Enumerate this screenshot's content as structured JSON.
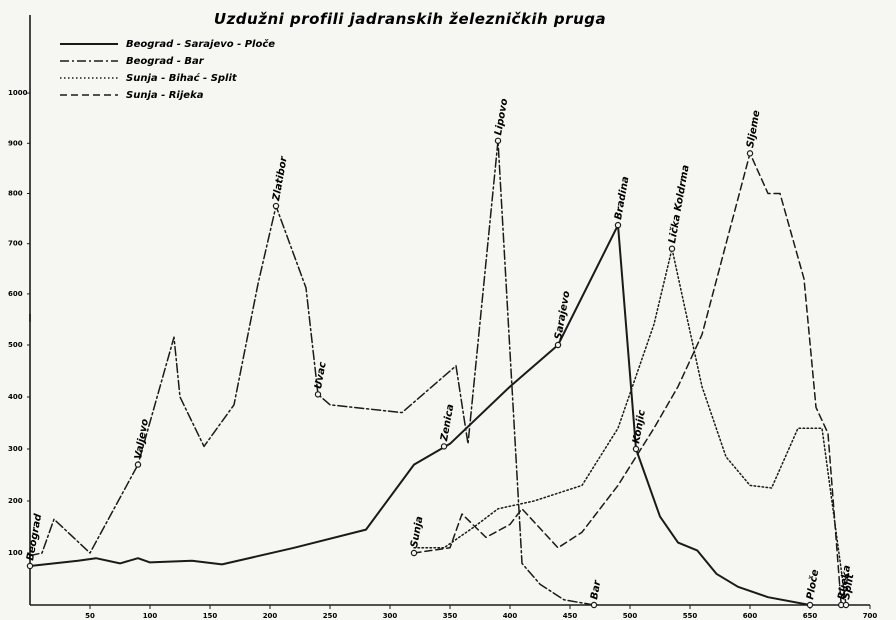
{
  "chart_data": {
    "type": "line",
    "title": "Uzdužni profili jadranskih železničkih pruga",
    "xlabel": "",
    "ylabel": "",
    "xlim": [
      0,
      700
    ],
    "ylim_lower": [
      0,
      550
    ],
    "ylim_upper": [
      550,
      1000
    ],
    "x_ticks": [
      "50",
      "100",
      "150",
      "200",
      "250",
      "300",
      "350",
      "400",
      "450",
      "500",
      "550",
      "600",
      "650",
      "700"
    ],
    "y_ticks_lower": [
      "100",
      "200",
      "300",
      "400",
      "500"
    ],
    "y_ticks_upper": [
      "600",
      "700",
      "800",
      "900",
      "1000"
    ],
    "legend_position": "top-left",
    "series": [
      {
        "name": "Beograd - Sarajevo - Ploče",
        "style": "solid",
        "points": [
          [
            0,
            75
          ],
          [
            40,
            85
          ],
          [
            55,
            90
          ],
          [
            75,
            80
          ],
          [
            90,
            90
          ],
          [
            100,
            82
          ],
          [
            135,
            85
          ],
          [
            160,
            78
          ],
          [
            220,
            110
          ],
          [
            280,
            145
          ],
          [
            320,
            270
          ],
          [
            350,
            310
          ],
          [
            400,
            420
          ],
          [
            440,
            500
          ],
          [
            490,
            737
          ],
          [
            505,
            300
          ],
          [
            525,
            170
          ],
          [
            540,
            120
          ],
          [
            556,
            105
          ],
          [
            572,
            60
          ],
          [
            590,
            35
          ],
          [
            615,
            15
          ],
          [
            650,
            0
          ]
        ]
      },
      {
        "name": "Beograd - Bar",
        "style": "dashdot",
        "points": [
          [
            0,
            95
          ],
          [
            10,
            100
          ],
          [
            20,
            165
          ],
          [
            50,
            100
          ],
          [
            90,
            270
          ],
          [
            120,
            515
          ],
          [
            125,
            400
          ],
          [
            145,
            305
          ],
          [
            170,
            385
          ],
          [
            190,
            620
          ],
          [
            205,
            775
          ],
          [
            230,
            612
          ],
          [
            240,
            405
          ],
          [
            250,
            385
          ],
          [
            310,
            370
          ],
          [
            355,
            460
          ],
          [
            365,
            310
          ],
          [
            390,
            905
          ],
          [
            410,
            80
          ],
          [
            425,
            40
          ],
          [
            445,
            10
          ],
          [
            470,
            0
          ]
        ]
      },
      {
        "name": "Sunja - Bihać - Split",
        "style": "dotted",
        "points": [
          [
            320,
            110
          ],
          [
            345,
            110
          ],
          [
            370,
            150
          ],
          [
            390,
            185
          ],
          [
            420,
            200
          ],
          [
            460,
            230
          ],
          [
            490,
            340
          ],
          [
            520,
            540
          ],
          [
            535,
            690
          ],
          [
            560,
            420
          ],
          [
            580,
            285
          ],
          [
            600,
            230
          ],
          [
            618,
            225
          ],
          [
            640,
            340
          ],
          [
            660,
            340
          ],
          [
            680,
            0
          ]
        ]
      },
      {
        "name": "Sunja - Rijeka",
        "style": "dashed",
        "points": [
          [
            320,
            100
          ],
          [
            350,
            110
          ],
          [
            360,
            175
          ],
          [
            380,
            130
          ],
          [
            400,
            155
          ],
          [
            410,
            185
          ],
          [
            440,
            110
          ],
          [
            460,
            140
          ],
          [
            490,
            230
          ],
          [
            520,
            340
          ],
          [
            540,
            420
          ],
          [
            560,
            520
          ],
          [
            600,
            880
          ],
          [
            615,
            800
          ],
          [
            625,
            800
          ],
          [
            645,
            630
          ],
          [
            655,
            380
          ],
          [
            665,
            330
          ],
          [
            676,
            0
          ]
        ]
      }
    ],
    "stations": [
      {
        "name": "Beograd",
        "x": 0,
        "y": 75
      },
      {
        "name": "Valjevo",
        "x": 90,
        "y": 270
      },
      {
        "name": "Zlatibor",
        "x": 205,
        "y": 775
      },
      {
        "name": "Uvac",
        "x": 240,
        "y": 405
      },
      {
        "name": "Lipovo",
        "x": 390,
        "y": 905
      },
      {
        "name": "Zenica",
        "x": 345,
        "y": 305
      },
      {
        "name": "Sarajevo",
        "x": 440,
        "y": 500
      },
      {
        "name": "Bradina",
        "x": 490,
        "y": 737
      },
      {
        "name": "Konjic",
        "x": 505,
        "y": 300
      },
      {
        "name": "Sunja",
        "x": 320,
        "y": 100
      },
      {
        "name": "Bar",
        "x": 470,
        "y": 0
      },
      {
        "name": "Lička Koldrma",
        "x": 535,
        "y": 690
      },
      {
        "name": "Sljeme",
        "x": 600,
        "y": 880
      },
      {
        "name": "Ploče",
        "x": 650,
        "y": 0
      },
      {
        "name": "Rijeka",
        "x": 676,
        "y": 0
      },
      {
        "name": "Split",
        "x": 680,
        "y": 0
      }
    ]
  }
}
